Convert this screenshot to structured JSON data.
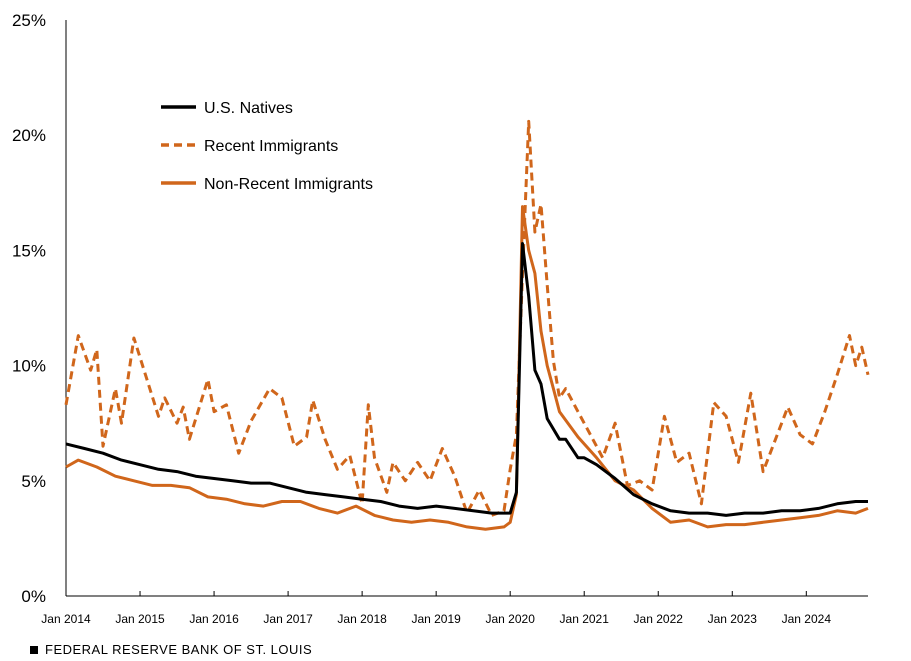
{
  "footer": {
    "text": "FEDERAL RESERVE BANK OF ST. LOUIS"
  },
  "chart_data": {
    "type": "line",
    "title": "",
    "xlabel": "",
    "ylabel": "",
    "ylim": [
      0,
      25
    ],
    "y_ticks": [
      0,
      5,
      10,
      15,
      20,
      25
    ],
    "y_tick_labels": [
      "0%",
      "5%",
      "10%",
      "15%",
      "20%",
      "25%"
    ],
    "x_range": [
      "2014-01",
      "2024-11"
    ],
    "x_ticks": [
      "2014-01",
      "2015-01",
      "2016-01",
      "2017-01",
      "2018-01",
      "2019-01",
      "2020-01",
      "2021-01",
      "2022-01",
      "2023-01",
      "2024-01"
    ],
    "x_tick_labels": [
      "Jan 2014",
      "Jan 2015",
      "Jan 2016",
      "Jan 2017",
      "Jan 2018",
      "Jan 2019",
      "Jan 2020",
      "Jan 2021",
      "Jan 2022",
      "Jan 2023",
      "Jan 2024"
    ],
    "grid": false,
    "legend_position": "top-left",
    "series": [
      {
        "name": "U.S. Natives",
        "color": "#000000",
        "style": "solid",
        "points": [
          [
            "2014-01",
            6.6
          ],
          [
            "2014-04",
            6.4
          ],
          [
            "2014-07",
            6.2
          ],
          [
            "2014-10",
            5.9
          ],
          [
            "2015-01",
            5.7
          ],
          [
            "2015-04",
            5.5
          ],
          [
            "2015-07",
            5.4
          ],
          [
            "2015-10",
            5.2
          ],
          [
            "2016-01",
            5.1
          ],
          [
            "2016-04",
            5.0
          ],
          [
            "2016-07",
            4.9
          ],
          [
            "2016-10",
            4.9
          ],
          [
            "2017-01",
            4.7
          ],
          [
            "2017-04",
            4.5
          ],
          [
            "2017-07",
            4.4
          ],
          [
            "2017-10",
            4.3
          ],
          [
            "2018-01",
            4.2
          ],
          [
            "2018-04",
            4.1
          ],
          [
            "2018-07",
            3.9
          ],
          [
            "2018-10",
            3.8
          ],
          [
            "2019-01",
            3.9
          ],
          [
            "2019-04",
            3.8
          ],
          [
            "2019-07",
            3.7
          ],
          [
            "2019-10",
            3.6
          ],
          [
            "2020-01",
            3.6
          ],
          [
            "2020-02",
            4.5
          ],
          [
            "2020-03",
            15.3
          ],
          [
            "2020-04",
            13.0
          ],
          [
            "2020-05",
            9.8
          ],
          [
            "2020-06",
            9.2
          ],
          [
            "2020-07",
            7.7
          ],
          [
            "2020-09",
            6.8
          ],
          [
            "2020-10",
            6.8
          ],
          [
            "2020-12",
            6.0
          ],
          [
            "2021-01",
            6.0
          ],
          [
            "2021-03",
            5.7
          ],
          [
            "2021-06",
            5.1
          ],
          [
            "2021-09",
            4.4
          ],
          [
            "2021-12",
            4.0
          ],
          [
            "2022-03",
            3.7
          ],
          [
            "2022-06",
            3.6
          ],
          [
            "2022-09",
            3.6
          ],
          [
            "2022-12",
            3.5
          ],
          [
            "2023-03",
            3.6
          ],
          [
            "2023-06",
            3.6
          ],
          [
            "2023-09",
            3.7
          ],
          [
            "2023-12",
            3.7
          ],
          [
            "2024-03",
            3.8
          ],
          [
            "2024-06",
            4.0
          ],
          [
            "2024-09",
            4.1
          ],
          [
            "2024-11",
            4.1
          ]
        ]
      },
      {
        "name": "Recent Immigrants",
        "color": "#D0661B",
        "style": "dashed",
        "points": [
          [
            "2014-01",
            8.3
          ],
          [
            "2014-03",
            11.3
          ],
          [
            "2014-05",
            9.8
          ],
          [
            "2014-06",
            10.7
          ],
          [
            "2014-07",
            6.5
          ],
          [
            "2014-09",
            9.0
          ],
          [
            "2014-10",
            7.5
          ],
          [
            "2014-12",
            11.2
          ],
          [
            "2015-02",
            9.5
          ],
          [
            "2015-04",
            7.8
          ],
          [
            "2015-05",
            8.6
          ],
          [
            "2015-07",
            7.5
          ],
          [
            "2015-08",
            8.2
          ],
          [
            "2015-09",
            6.8
          ],
          [
            "2015-12",
            9.4
          ],
          [
            "2016-01",
            8.0
          ],
          [
            "2016-03",
            8.3
          ],
          [
            "2016-05",
            6.2
          ],
          [
            "2016-07",
            7.6
          ],
          [
            "2016-10",
            9.0
          ],
          [
            "2016-12",
            8.6
          ],
          [
            "2017-02",
            6.5
          ],
          [
            "2017-04",
            6.9
          ],
          [
            "2017-05",
            8.5
          ],
          [
            "2017-07",
            6.8
          ],
          [
            "2017-09",
            5.5
          ],
          [
            "2017-11",
            6.1
          ],
          [
            "2018-01",
            4.0
          ],
          [
            "2018-02",
            8.3
          ],
          [
            "2018-03",
            6.0
          ],
          [
            "2018-05",
            4.5
          ],
          [
            "2018-06",
            5.8
          ],
          [
            "2018-08",
            5.0
          ],
          [
            "2018-10",
            5.8
          ],
          [
            "2018-12",
            5.0
          ],
          [
            "2019-02",
            6.4
          ],
          [
            "2019-04",
            5.2
          ],
          [
            "2019-06",
            3.6
          ],
          [
            "2019-08",
            4.6
          ],
          [
            "2019-10",
            3.5
          ],
          [
            "2019-12",
            3.7
          ],
          [
            "2020-01",
            5.5
          ],
          [
            "2020-02",
            7.0
          ],
          [
            "2020-03",
            14.0
          ],
          [
            "2020-04",
            20.6
          ],
          [
            "2020-05",
            15.8
          ],
          [
            "2020-06",
            17.0
          ],
          [
            "2020-07",
            13.5
          ],
          [
            "2020-08",
            10.2
          ],
          [
            "2020-09",
            8.6
          ],
          [
            "2020-10",
            9.0
          ],
          [
            "2020-12",
            8.0
          ],
          [
            "2021-02",
            7.0
          ],
          [
            "2021-04",
            6.0
          ],
          [
            "2021-06",
            7.5
          ],
          [
            "2021-08",
            4.8
          ],
          [
            "2021-10",
            5.0
          ],
          [
            "2021-12",
            4.6
          ],
          [
            "2022-02",
            7.8
          ],
          [
            "2022-04",
            5.8
          ],
          [
            "2022-06",
            6.2
          ],
          [
            "2022-08",
            4.0
          ],
          [
            "2022-10",
            8.4
          ],
          [
            "2022-12",
            7.8
          ],
          [
            "2023-02",
            5.8
          ],
          [
            "2023-04",
            8.8
          ],
          [
            "2023-06",
            5.4
          ],
          [
            "2023-08",
            6.8
          ],
          [
            "2023-10",
            8.2
          ],
          [
            "2023-12",
            7.0
          ],
          [
            "2024-02",
            6.6
          ],
          [
            "2024-04",
            8.0
          ],
          [
            "2024-06",
            9.6
          ],
          [
            "2024-08",
            11.3
          ],
          [
            "2024-09",
            10.0
          ],
          [
            "2024-10",
            10.8
          ],
          [
            "2024-11",
            9.6
          ]
        ]
      },
      {
        "name": "Non-Recent Immigrants",
        "color": "#D0661B",
        "style": "solid",
        "points": [
          [
            "2014-01",
            5.6
          ],
          [
            "2014-03",
            5.9
          ],
          [
            "2014-06",
            5.6
          ],
          [
            "2014-09",
            5.2
          ],
          [
            "2014-12",
            5.0
          ],
          [
            "2015-03",
            4.8
          ],
          [
            "2015-06",
            4.8
          ],
          [
            "2015-09",
            4.7
          ],
          [
            "2015-12",
            4.3
          ],
          [
            "2016-03",
            4.2
          ],
          [
            "2016-06",
            4.0
          ],
          [
            "2016-09",
            3.9
          ],
          [
            "2016-12",
            4.1
          ],
          [
            "2017-03",
            4.1
          ],
          [
            "2017-06",
            3.8
          ],
          [
            "2017-09",
            3.6
          ],
          [
            "2017-12",
            3.9
          ],
          [
            "2018-03",
            3.5
          ],
          [
            "2018-06",
            3.3
          ],
          [
            "2018-09",
            3.2
          ],
          [
            "2018-12",
            3.3
          ],
          [
            "2019-03",
            3.2
          ],
          [
            "2019-06",
            3.0
          ],
          [
            "2019-09",
            2.9
          ],
          [
            "2019-12",
            3.0
          ],
          [
            "2020-01",
            3.2
          ],
          [
            "2020-02",
            4.4
          ],
          [
            "2020-03",
            16.9
          ],
          [
            "2020-04",
            15.0
          ],
          [
            "2020-05",
            14.0
          ],
          [
            "2020-06",
            11.5
          ],
          [
            "2020-07",
            10.0
          ],
          [
            "2020-08",
            9.0
          ],
          [
            "2020-09",
            8.0
          ],
          [
            "2020-12",
            6.9
          ],
          [
            "2021-03",
            6.0
          ],
          [
            "2021-06",
            5.0
          ],
          [
            "2021-09",
            4.6
          ],
          [
            "2021-12",
            3.8
          ],
          [
            "2022-03",
            3.2
          ],
          [
            "2022-06",
            3.3
          ],
          [
            "2022-09",
            3.0
          ],
          [
            "2022-12",
            3.1
          ],
          [
            "2023-03",
            3.1
          ],
          [
            "2023-06",
            3.2
          ],
          [
            "2023-09",
            3.3
          ],
          [
            "2023-12",
            3.4
          ],
          [
            "2024-03",
            3.5
          ],
          [
            "2024-06",
            3.7
          ],
          [
            "2024-09",
            3.6
          ],
          [
            "2024-11",
            3.8
          ]
        ]
      }
    ]
  }
}
